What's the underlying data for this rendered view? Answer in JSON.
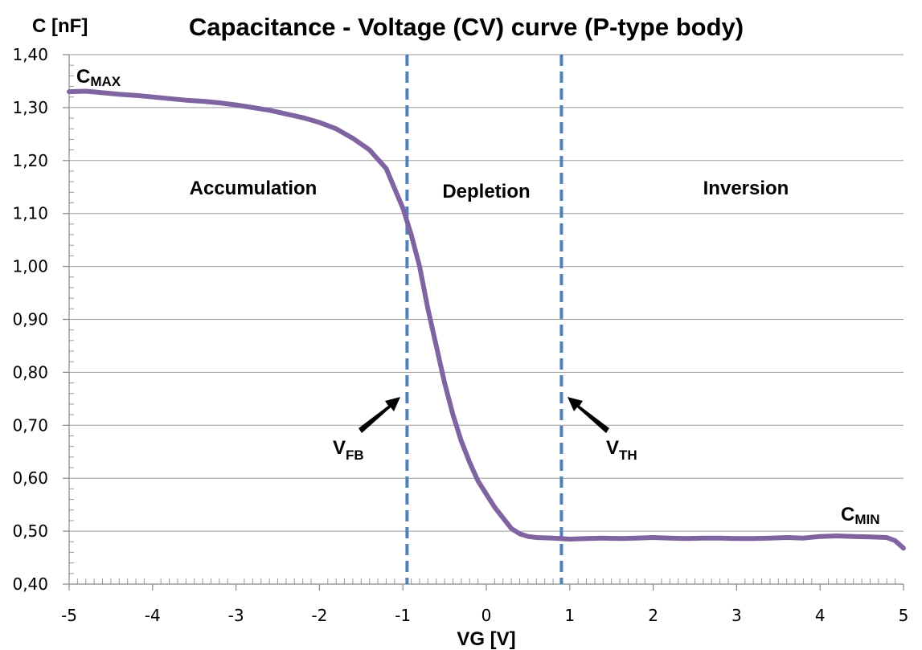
{
  "chart_data": {
    "type": "line",
    "title": "Capacitance - Voltage (CV) curve (P-type body)",
    "xlabel": "VG [V]",
    "ylabel": "C [nF]",
    "xlim": [
      -5,
      5
    ],
    "ylim": [
      0.4,
      1.4
    ],
    "x_ticks": [
      -5,
      -4,
      -3,
      -2,
      -1,
      0,
      1,
      2,
      3,
      4,
      5
    ],
    "x_tick_labels": [
      "-5",
      "-4",
      "-3",
      "-2",
      "-1",
      "0",
      "1",
      "2",
      "3",
      "4",
      "5"
    ],
    "y_ticks": [
      0.4,
      0.5,
      0.6,
      0.7,
      0.8,
      0.9,
      1.0,
      1.1,
      1.2,
      1.3,
      1.4
    ],
    "y_tick_labels": [
      "0,40",
      "0,50",
      "0,60",
      "0,70",
      "0,80",
      "0,90",
      "1,00",
      "1,10",
      "1,20",
      "1,30",
      "1,40"
    ],
    "grid": "horizontal",
    "line_color": "#8064A2",
    "marker_color": "#4F81BD",
    "series": [
      {
        "x": [
          -5.0,
          -4.8,
          -4.6,
          -4.4,
          -4.2,
          -4.0,
          -3.8,
          -3.6,
          -3.4,
          -3.2,
          -3.0,
          -2.8,
          -2.6,
          -2.4,
          -2.2,
          -2.0,
          -1.8,
          -1.6,
          -1.4,
          -1.2,
          -1.0,
          -0.9,
          -0.8,
          -0.7,
          -0.6,
          -0.5,
          -0.4,
          -0.3,
          -0.2,
          -0.1,
          0.0,
          0.1,
          0.2,
          0.3,
          0.4,
          0.5,
          0.6,
          0.8,
          1.0,
          1.2,
          1.4,
          1.6,
          1.8,
          2.0,
          2.2,
          2.4,
          2.6,
          2.8,
          3.0,
          3.2,
          3.4,
          3.6,
          3.8,
          4.0,
          4.2,
          4.4,
          4.6,
          4.8,
          4.9,
          5.0
        ],
        "values": [
          1.33,
          1.331,
          1.328,
          1.325,
          1.323,
          1.32,
          1.317,
          1.314,
          1.312,
          1.309,
          1.305,
          1.3,
          1.295,
          1.288,
          1.281,
          1.272,
          1.26,
          1.242,
          1.22,
          1.185,
          1.11,
          1.06,
          1.0,
          0.92,
          0.85,
          0.78,
          0.72,
          0.67,
          0.63,
          0.595,
          0.57,
          0.545,
          0.525,
          0.505,
          0.495,
          0.49,
          0.488,
          0.487,
          0.485,
          0.486,
          0.487,
          0.486,
          0.487,
          0.488,
          0.487,
          0.486,
          0.487,
          0.487,
          0.486,
          0.486,
          0.487,
          0.488,
          0.487,
          0.49,
          0.491,
          0.49,
          0.489,
          0.488,
          0.482,
          0.468
        ]
      }
    ],
    "markers": [
      {
        "x": -0.95
      },
      {
        "x": 0.9
      }
    ],
    "regions": [
      {
        "label": "Accumulation"
      },
      {
        "label": "Depletion"
      },
      {
        "label": "Inversion"
      }
    ],
    "annotations": {
      "cmax": {
        "main": "C",
        "sub": "MAX"
      },
      "cmin": {
        "main": "C",
        "sub": "MIN"
      },
      "vfb": {
        "main": "V",
        "sub": "FB"
      },
      "vth": {
        "main": "V",
        "sub": "TH"
      }
    }
  }
}
